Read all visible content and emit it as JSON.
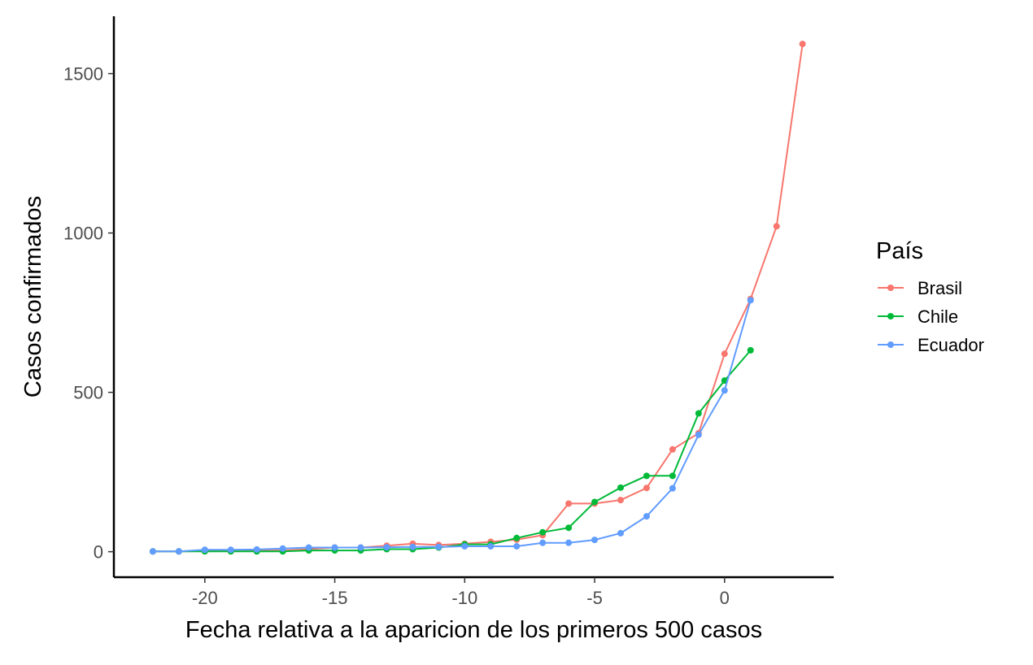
{
  "chart_data": {
    "type": "line",
    "xlabel": "Fecha relativa a la aparicion de los primeros 500 casos",
    "ylabel": "Casos confirmados",
    "xlim": [
      -23.5,
      4.2
    ],
    "ylim": [
      -80,
      1680
    ],
    "x_ticks": [
      -20,
      -15,
      -10,
      -5,
      0
    ],
    "y_ticks": [
      0,
      500,
      1000,
      1500
    ],
    "x_tick_labels": [
      "-20",
      "-15",
      "-10",
      "-5",
      "0"
    ],
    "y_tick_labels": [
      "0",
      "500",
      "1000",
      "1500"
    ],
    "grid": false,
    "legend": {
      "title": "País",
      "position": "right"
    },
    "series": [
      {
        "name": "Brasil",
        "color": "#F8766D",
        "x": [
          -22,
          -21,
          -20,
          -19,
          -18,
          -17,
          -16,
          -15,
          -14,
          -13,
          -12,
          -11,
          -10,
          -9,
          -8,
          -7,
          -6,
          -5,
          -4,
          -3,
          -2,
          -1,
          0,
          1,
          2,
          3
        ],
        "y": [
          1,
          1,
          2,
          2,
          4,
          4,
          8,
          13,
          13,
          19,
          25,
          21,
          25,
          31,
          38,
          52,
          151,
          151,
          162,
          200,
          321,
          372,
          621,
          793,
          1021,
          1593
        ]
      },
      {
        "name": "Chile",
        "color": "#00BA38",
        "x": [
          -22,
          -21,
          -20,
          -19,
          -18,
          -17,
          -16,
          -15,
          -14,
          -13,
          -12,
          -11,
          -10,
          -9,
          -8,
          -7,
          -6,
          -5,
          -4,
          -3,
          -2,
          -1,
          0,
          1
        ],
        "y": [
          1,
          1,
          1,
          1,
          1,
          1,
          4,
          4,
          4,
          8,
          8,
          13,
          23,
          23,
          43,
          61,
          75,
          156,
          201,
          238,
          238,
          434,
          537,
          632
        ]
      },
      {
        "name": "Ecuador",
        "color": "#619CFF",
        "x": [
          -22,
          -21,
          -20,
          -19,
          -18,
          -17,
          -16,
          -15,
          -14,
          -13,
          -12,
          -11,
          -10,
          -9,
          -8,
          -7,
          -6,
          -5,
          -4,
          -3,
          -2,
          -1,
          0,
          1
        ],
        "y": [
          1,
          1,
          6,
          6,
          7,
          10,
          13,
          13,
          13,
          14,
          15,
          15,
          17,
          17,
          17,
          28,
          28,
          37,
          58,
          111,
          199,
          367,
          506,
          789
        ]
      }
    ]
  }
}
